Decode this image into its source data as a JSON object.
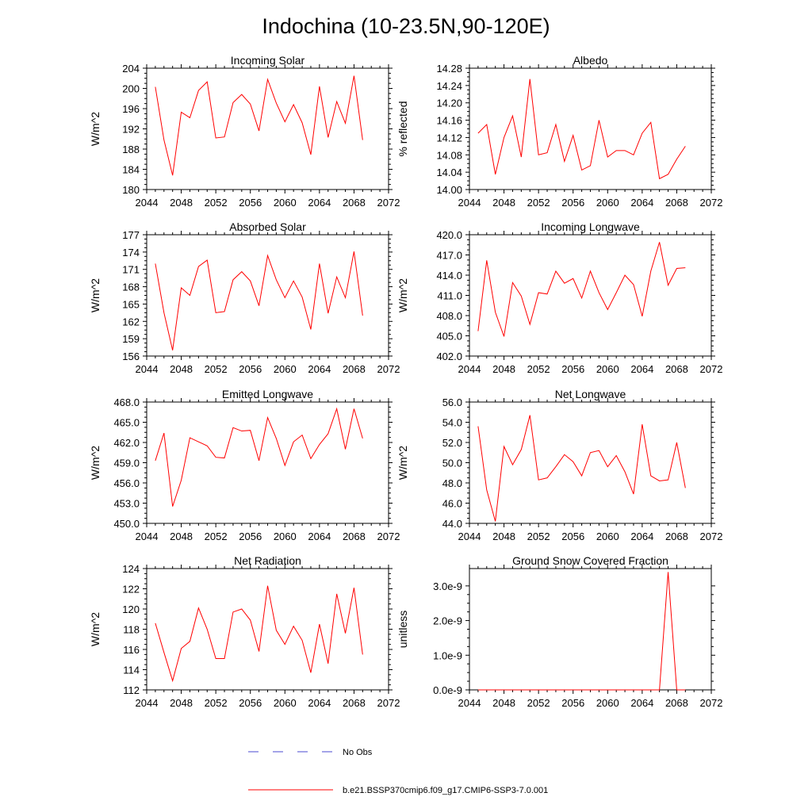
{
  "figure": {
    "title": "Indochina (10-23.5N,90-120E)"
  },
  "legend": {
    "obs_label": "No Obs",
    "obs_color": "#4a4ad0",
    "model_label": "b.e21.BSSP370cmip6.f09_g17.CMIP6-SSP3-7.0.001",
    "model_color": "#ff0000"
  },
  "chart_data": [
    {
      "type": "line",
      "title": "Incoming Solar",
      "ylabel": "W/m^2",
      "xlim": [
        2044,
        2072
      ],
      "xticks": [
        "2044",
        "2048",
        "2052",
        "2056",
        "2060",
        "2064",
        "2068",
        "2072"
      ],
      "ylim": [
        180,
        204
      ],
      "yticks": [
        "180",
        "184",
        "188",
        "192",
        "196",
        "200",
        "204"
      ],
      "grid": false,
      "series": [
        {
          "color": "#ff0000",
          "x": [
            2045,
            2046,
            2047,
            2048,
            2049,
            2050,
            2051,
            2052,
            2053,
            2054,
            2055,
            2056,
            2057,
            2058,
            2059,
            2060,
            2061,
            2062,
            2063,
            2064,
            2065,
            2066,
            2067,
            2068,
            2069
          ],
          "values": [
            200.3,
            189.8,
            182.8,
            195.3,
            194.2,
            199.6,
            201.3,
            190.2,
            190.4,
            197.2,
            198.8,
            196.9,
            191.6,
            201.8,
            197.1,
            193.4,
            196.8,
            193.2,
            186.9,
            200.4,
            190.3,
            197.4,
            193.1,
            202.5,
            189.8
          ]
        }
      ]
    },
    {
      "type": "line",
      "title": "Albedo",
      "ylabel": "% reflected",
      "xlim": [
        2044,
        2072
      ],
      "xticks": [
        "2044",
        "2048",
        "2052",
        "2056",
        "2060",
        "2064",
        "2068",
        "2072"
      ],
      "ylim": [
        14.0,
        14.28
      ],
      "yticks": [
        "14.00",
        "14.04",
        "14.08",
        "14.12",
        "14.16",
        "14.20",
        "14.24",
        "14.28"
      ],
      "grid": false,
      "series": [
        {
          "color": "#ff0000",
          "x": [
            2045,
            2046,
            2047,
            2048,
            2049,
            2050,
            2051,
            2052,
            2053,
            2054,
            2055,
            2056,
            2057,
            2058,
            2059,
            2060,
            2061,
            2062,
            2063,
            2064,
            2065,
            2066,
            2067,
            2068,
            2069
          ],
          "values": [
            14.13,
            14.15,
            14.035,
            14.12,
            14.17,
            14.075,
            14.255,
            14.08,
            14.085,
            14.15,
            14.065,
            14.125,
            14.045,
            14.055,
            14.16,
            14.075,
            14.09,
            14.09,
            14.08,
            14.13,
            14.155,
            14.025,
            14.035,
            14.07,
            14.1
          ]
        }
      ]
    },
    {
      "type": "line",
      "title": "Absorbed Solar",
      "ylabel": "W/m^2",
      "xlim": [
        2044,
        2072
      ],
      "xticks": [
        "2044",
        "2048",
        "2052",
        "2056",
        "2060",
        "2064",
        "2068",
        "2072"
      ],
      "ylim": [
        156,
        177
      ],
      "yticks": [
        "156",
        "159",
        "162",
        "165",
        "168",
        "171",
        "174",
        "177"
      ],
      "grid": false,
      "series": [
        {
          "color": "#ff0000",
          "x": [
            2045,
            2046,
            2047,
            2048,
            2049,
            2050,
            2051,
            2052,
            2053,
            2054,
            2055,
            2056,
            2057,
            2058,
            2059,
            2060,
            2061,
            2062,
            2063,
            2064,
            2065,
            2066,
            2067,
            2068,
            2069
          ],
          "values": [
            172.0,
            163.5,
            157.0,
            167.8,
            166.5,
            171.5,
            172.6,
            163.5,
            163.7,
            169.2,
            170.6,
            169.0,
            164.7,
            173.4,
            169.2,
            166.1,
            169.0,
            166.2,
            160.6,
            172.0,
            163.4,
            169.7,
            166.1,
            174.1,
            163.0
          ]
        }
      ]
    },
    {
      "type": "line",
      "title": "Incoming Longwave",
      "ylabel": "W/m^2",
      "xlim": [
        2044,
        2072
      ],
      "xticks": [
        "2044",
        "2048",
        "2052",
        "2056",
        "2060",
        "2064",
        "2068",
        "2072"
      ],
      "ylim": [
        402.0,
        420.0
      ],
      "yticks": [
        "402.0",
        "405.0",
        "408.0",
        "411.0",
        "414.0",
        "417.0",
        "420.0"
      ],
      "grid": false,
      "series": [
        {
          "color": "#ff0000",
          "x": [
            2045,
            2046,
            2047,
            2048,
            2049,
            2050,
            2051,
            2052,
            2053,
            2054,
            2055,
            2056,
            2057,
            2058,
            2059,
            2060,
            2061,
            2062,
            2063,
            2064,
            2065,
            2066,
            2067,
            2068,
            2069
          ],
          "values": [
            405.7,
            416.2,
            408.5,
            404.9,
            412.9,
            410.9,
            406.7,
            411.4,
            411.2,
            414.6,
            412.8,
            413.5,
            410.6,
            414.6,
            411.4,
            408.9,
            411.4,
            414.0,
            412.6,
            407.9,
            414.6,
            418.9,
            412.5,
            415.0,
            415.1
          ]
        }
      ]
    },
    {
      "type": "line",
      "title": "Emitted Longwave",
      "ylabel": "W/m^2",
      "xlim": [
        2044,
        2072
      ],
      "xticks": [
        "2044",
        "2048",
        "2052",
        "2056",
        "2060",
        "2064",
        "2068",
        "2072"
      ],
      "ylim": [
        450.0,
        468.0
      ],
      "yticks": [
        "450.0",
        "453.0",
        "456.0",
        "459.0",
        "462.0",
        "465.0",
        "468.0"
      ],
      "grid": false,
      "series": [
        {
          "color": "#ff0000",
          "x": [
            2045,
            2046,
            2047,
            2048,
            2049,
            2050,
            2051,
            2052,
            2053,
            2054,
            2055,
            2056,
            2057,
            2058,
            2059,
            2060,
            2061,
            2062,
            2063,
            2064,
            2065,
            2066,
            2067,
            2068,
            2069
          ],
          "values": [
            459.3,
            463.4,
            452.5,
            456.4,
            462.7,
            462.1,
            461.5,
            459.8,
            459.7,
            464.2,
            463.7,
            463.8,
            459.3,
            465.7,
            462.6,
            458.6,
            462.1,
            463.1,
            459.6,
            461.7,
            463.3,
            467.0,
            461.0,
            467.0,
            462.6
          ]
        }
      ]
    },
    {
      "type": "line",
      "title": "Net Longwave",
      "ylabel": "W/m^2",
      "xlim": [
        2044,
        2072
      ],
      "xticks": [
        "2044",
        "2048",
        "2052",
        "2056",
        "2060",
        "2064",
        "2068",
        "2072"
      ],
      "ylim": [
        44.0,
        56.0
      ],
      "yticks": [
        "44.0",
        "46.0",
        "48.0",
        "50.0",
        "52.0",
        "54.0",
        "56.0"
      ],
      "grid": false,
      "series": [
        {
          "color": "#ff0000",
          "x": [
            2045,
            2046,
            2047,
            2048,
            2049,
            2050,
            2051,
            2052,
            2053,
            2054,
            2055,
            2056,
            2057,
            2058,
            2059,
            2060,
            2061,
            2062,
            2063,
            2064,
            2065,
            2066,
            2067,
            2068,
            2069
          ],
          "values": [
            53.6,
            47.3,
            44.2,
            51.6,
            49.8,
            51.3,
            54.7,
            48.3,
            48.5,
            49.6,
            50.8,
            50.1,
            48.7,
            51.0,
            51.2,
            49.6,
            50.7,
            49.1,
            46.9,
            53.8,
            48.7,
            48.2,
            48.3,
            52.0,
            47.5
          ]
        }
      ]
    },
    {
      "type": "line",
      "title": "Net Radiation",
      "ylabel": "W/m^2",
      "xlim": [
        2044,
        2072
      ],
      "xticks": [
        "2044",
        "2048",
        "2052",
        "2056",
        "2060",
        "2064",
        "2068",
        "2072"
      ],
      "ylim": [
        112,
        124
      ],
      "yticks": [
        "112",
        "114",
        "116",
        "118",
        "120",
        "122",
        "124"
      ],
      "grid": false,
      "series": [
        {
          "color": "#ff0000",
          "x": [
            2045,
            2046,
            2047,
            2048,
            2049,
            2050,
            2051,
            2052,
            2053,
            2054,
            2055,
            2056,
            2057,
            2058,
            2059,
            2060,
            2061,
            2062,
            2063,
            2064,
            2065,
            2066,
            2067,
            2068,
            2069
          ],
          "values": [
            118.6,
            115.7,
            112.9,
            116.1,
            116.8,
            120.1,
            118.0,
            115.1,
            115.1,
            119.7,
            120.0,
            118.9,
            115.8,
            122.3,
            117.9,
            116.5,
            118.3,
            116.9,
            113.7,
            118.5,
            114.6,
            121.5,
            117.6,
            122.1,
            115.5
          ]
        }
      ]
    },
    {
      "type": "line",
      "title": "Ground Snow Covered Fraction",
      "ylabel": "unitless",
      "xlim": [
        2044,
        2072
      ],
      "xticks": [
        "2044",
        "2048",
        "2052",
        "2056",
        "2060",
        "2064",
        "2068",
        "2072"
      ],
      "ylim": [
        0,
        3.5e-09
      ],
      "ytickvalues": [
        0,
        1e-09,
        2e-09,
        3e-09
      ],
      "yticks": [
        "0.0e-9",
        "1.0e-9",
        "2.0e-9",
        "3.0e-9"
      ],
      "grid": false,
      "series": [
        {
          "color": "#ff0000",
          "x": [
            2045,
            2046,
            2047,
            2048,
            2049,
            2050,
            2051,
            2052,
            2053,
            2054,
            2055,
            2056,
            2057,
            2058,
            2059,
            2060,
            2061,
            2062,
            2063,
            2064,
            2065,
            2066,
            2067,
            2068,
            2069
          ],
          "values": [
            0,
            0,
            0,
            0,
            0,
            0,
            0,
            0,
            0,
            0,
            0,
            0,
            0,
            0,
            0,
            0,
            0,
            0,
            0,
            0,
            0,
            0,
            3.4e-09,
            0,
            0
          ]
        }
      ]
    }
  ]
}
